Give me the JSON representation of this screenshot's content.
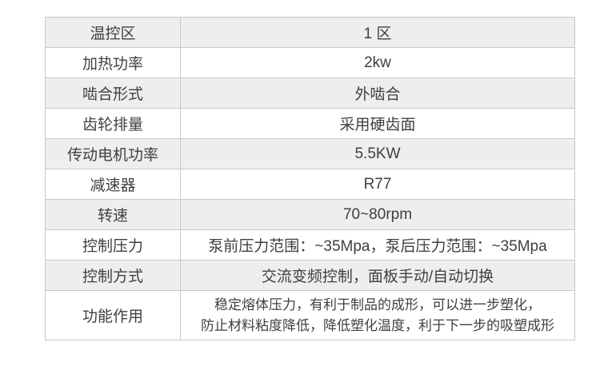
{
  "table": {
    "rows": [
      {
        "label": "温控区",
        "value": "1 区"
      },
      {
        "label": "加热功率",
        "value": "2kw"
      },
      {
        "label": "啮合形式",
        "value": "外啮合"
      },
      {
        "label": "齿轮排量",
        "value": "采用硬齿面"
      },
      {
        "label": "传动电机功率",
        "value": "5.5KW"
      },
      {
        "label": "减速器",
        "value": "R77"
      },
      {
        "label": "转速",
        "value": "70~80rpm"
      },
      {
        "label": "控制压力",
        "value": "泵前压力范围：~35Mpa，泵后压力范围：~35Mpa"
      },
      {
        "label": "控制方式",
        "value": "交流变频控制，面板手动/自动切换"
      },
      {
        "label": "功能作用",
        "value": [
          "稳定熔体压力，有利于制品的成形，可以进一步塑化，",
          "防止材料粘度降低，降低塑化温度，利于下一步的吸塑成形"
        ]
      }
    ],
    "colors": {
      "stripe_bg": "#eeeeee",
      "row_bg": "#ffffff",
      "border": "#c9c9c9",
      "text": "#404040"
    }
  }
}
